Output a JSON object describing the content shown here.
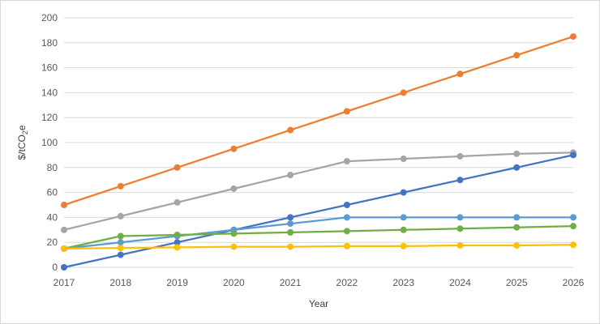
{
  "chart_data": {
    "type": "line",
    "title": "",
    "xlabel": "Year",
    "ylabel": "$/tCO",
    "ylabel_subscript": "2",
    "ylabel_suffix": "e",
    "ylim": [
      0,
      200
    ],
    "yticks": [
      0,
      20,
      40,
      60,
      80,
      100,
      120,
      140,
      160,
      180,
      200
    ],
    "grid": true,
    "legend": "none",
    "x": [
      "2017",
      "2018",
      "2019",
      "2020",
      "2021",
      "2022",
      "2023",
      "2024",
      "2025",
      "2026"
    ],
    "series": [
      {
        "color": "#ED7D31",
        "values": [
          50,
          65,
          80,
          95,
          110,
          125,
          140,
          155,
          170,
          185
        ]
      },
      {
        "color": "#A5A5A5",
        "values": [
          30,
          41,
          52,
          63,
          74,
          85,
          87,
          89,
          91,
          92
        ]
      },
      {
        "color": "#4472C4",
        "values": [
          0,
          10,
          20,
          30,
          40,
          50,
          60,
          70,
          80,
          90
        ]
      },
      {
        "color": "#5B9BD5",
        "values": [
          15,
          20,
          25,
          30,
          35,
          40,
          40,
          40,
          40,
          40
        ]
      },
      {
        "color": "#70AD47",
        "values": [
          15,
          25,
          26,
          27,
          28,
          29,
          30,
          31,
          32,
          33
        ]
      },
      {
        "color": "#FFC000",
        "values": [
          15,
          15.5,
          16,
          16.5,
          16.5,
          17,
          17,
          17.5,
          17.5,
          18
        ]
      }
    ]
  }
}
